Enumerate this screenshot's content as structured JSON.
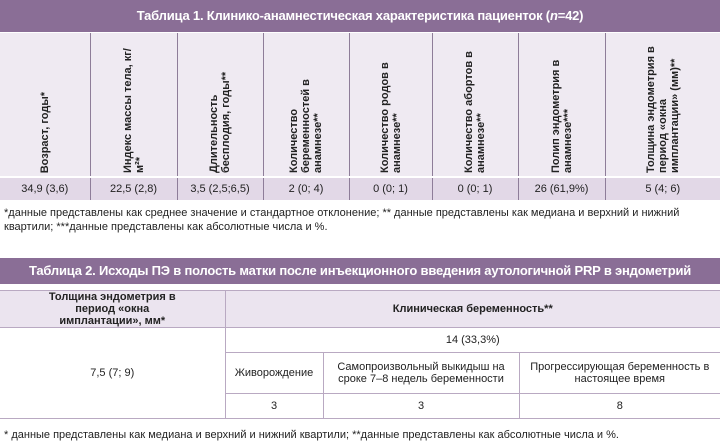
{
  "table1": {
    "title": [
      "Таблица 1. Клинико-анамнестическая характеристика пациенток (",
      "n",
      "=42)"
    ],
    "headers": [
      "Возраст, годы*",
      "Индекс массы тела, кг/м²*",
      "Длительность бесплодия, годы**",
      "Количество беременностей в анамнезе**",
      "Количество родов в анамнезе**",
      "Количество абортов в анамнезе**",
      "Полип эндометрия в анамнезе***",
      "Толщина эндометрия в период «окна имплантации» (мм)**"
    ],
    "values": [
      "34,9 (3,6)",
      "22,5 (2,8)",
      "3,5 (2,5;6,5)",
      "2 (0; 4)",
      "0 (0; 1)",
      "0 (0; 1)",
      "26 (61,9%)",
      "5 (4; 6)"
    ],
    "note": "*данные представлены как среднее значение и стандартное отклонение; ** данные представлены как медиана и верхний и нижний квартили; ***данные представлены как абсолютные числа и %."
  },
  "table2": {
    "title": "Таблица 2. Исходы ПЭ в полость матки после инъекционного введения аутологичной PRP в эндометрий",
    "left_header": "Толщина эндометрия в период «окна имплантации», мм*",
    "left_value": "7,5 (7; 9)",
    "right_header": "Клиническая беременность**",
    "right_total": "14 (33,3%)",
    "subheaders": [
      "Живорождение",
      "Самопроизвольный выкидыш на сроке 7–8 недель беременности",
      "Прогрессирующая беременность в настоящее время"
    ],
    "subvalues": [
      "3",
      "3",
      "8"
    ],
    "note": "* данные представлены как медиана и верхний и нижний квартили; **данные представлены как абсолютные числа и %."
  }
}
